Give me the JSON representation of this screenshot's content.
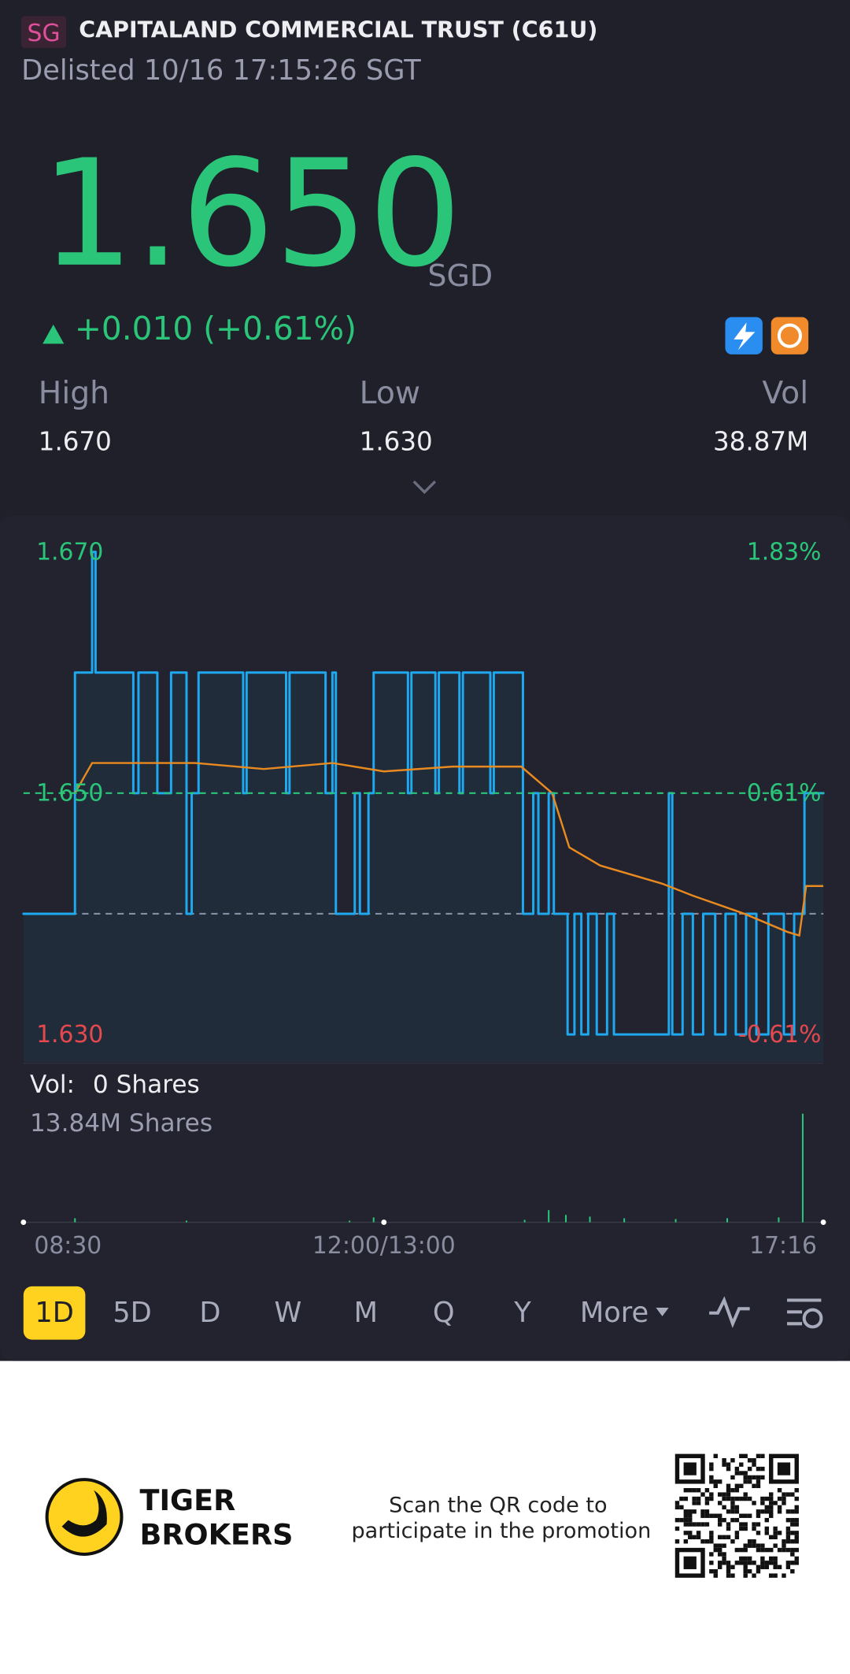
{
  "header": {
    "market": "SG",
    "title": "CAPITALAND COMMERCIAL TRUST (C61U)",
    "status": "Delisted 10/16 17:15:26 SGT"
  },
  "quote": {
    "price": "1.650",
    "currency": "SGD",
    "change": "+0.010 (+0.61%)"
  },
  "stats": [
    {
      "label": "High",
      "value": "1.670"
    },
    {
      "label": "Low",
      "value": "1.630"
    },
    {
      "label": "Vol",
      "value": "38.87M"
    }
  ],
  "chart_data": {
    "type": "line",
    "xlim": [
      0,
      466
    ],
    "xticks": [
      {
        "value": 0,
        "label": "08:30"
      },
      {
        "value": 210,
        "label": "12:00/13:00"
      },
      {
        "value": 466,
        "label": "17:16"
      }
    ],
    "ylim": [
      1.63,
      1.67
    ],
    "yticks": [
      {
        "value": 1.67,
        "label": "1.670"
      },
      {
        "value": 1.65,
        "label": "1.650"
      },
      {
        "value": 1.63,
        "label": "1.630"
      }
    ],
    "y2lim": [
      -0.61,
      1.83
    ],
    "y2ticks": [
      {
        "value": 1.83,
        "label": "1.83%"
      },
      {
        "value": 0.61,
        "label": "0.61%"
      },
      {
        "value": -0.61,
        "label": "-0.61%"
      }
    ],
    "baseline": 1.64,
    "last": 1.65,
    "series": [
      {
        "color": "#1ea8f0",
        "step": true,
        "fill": true,
        "x": [
          0,
          30,
          40,
          42,
          64,
          67,
          78,
          86,
          95,
          98,
          102,
          128,
          130,
          153,
          155,
          176,
          180,
          182,
          193,
          196,
          201,
          204,
          224,
          226,
          240,
          242,
          254,
          256,
          272,
          274,
          291,
          297,
          300,
          306,
          309,
          317,
          321,
          325,
          329,
          334,
          340,
          344,
          376,
          378,
          384,
          390,
          396,
          403,
          409,
          415,
          421,
          427,
          434,
          443,
          449,
          455,
          466
        ],
        "values": [
          1.64,
          1.66,
          1.67,
          1.66,
          1.65,
          1.66,
          1.65,
          1.66,
          1.64,
          1.65,
          1.66,
          1.65,
          1.66,
          1.65,
          1.66,
          1.65,
          1.66,
          1.64,
          1.65,
          1.64,
          1.65,
          1.66,
          1.65,
          1.66,
          1.65,
          1.66,
          1.65,
          1.66,
          1.65,
          1.66,
          1.64,
          1.65,
          1.64,
          1.65,
          1.64,
          1.63,
          1.64,
          1.63,
          1.64,
          1.63,
          1.64,
          1.63,
          1.65,
          1.63,
          1.64,
          1.63,
          1.64,
          1.63,
          1.64,
          1.63,
          1.64,
          1.63,
          1.64,
          1.63,
          1.64,
          1.65,
          1.65
        ]
      },
      {
        "color": "#e88a1f",
        "x": [
          30,
          40,
          100,
          140,
          180,
          210,
          250,
          290,
          308,
          318,
          336,
          372,
          390,
          420,
          445,
          452,
          456,
          466
        ],
        "values": [
          1.65,
          1.6525,
          1.6525,
          1.652,
          1.6525,
          1.6518,
          1.6522,
          1.6522,
          1.65,
          1.6455,
          1.644,
          1.6425,
          1.6415,
          1.64,
          1.6385,
          1.6382,
          1.6423,
          1.6423
        ]
      }
    ],
    "volume": {
      "label": "Vol:",
      "value": "0 Shares",
      "max_label": "13.84M Shares",
      "ylim": [
        0,
        13.84
      ],
      "color": "#2bc57a",
      "x": [
        30,
        95,
        190,
        204,
        292,
        306,
        316,
        330,
        350,
        380,
        410,
        440,
        454
      ],
      "values": [
        0.5,
        0.2,
        0.2,
        0.6,
        0.3,
        1.5,
        0.9,
        0.7,
        0.5,
        0.4,
        0.5,
        0.6,
        13.4
      ]
    }
  },
  "tabs": [
    "1D",
    "5D",
    "D",
    "W",
    "M",
    "Q",
    "Y",
    "More"
  ],
  "footer": {
    "brand_1": "TIGER",
    "brand_2": "BROKERS",
    "promo_1": "Scan the QR code to",
    "promo_2": "participate in the promotion"
  }
}
